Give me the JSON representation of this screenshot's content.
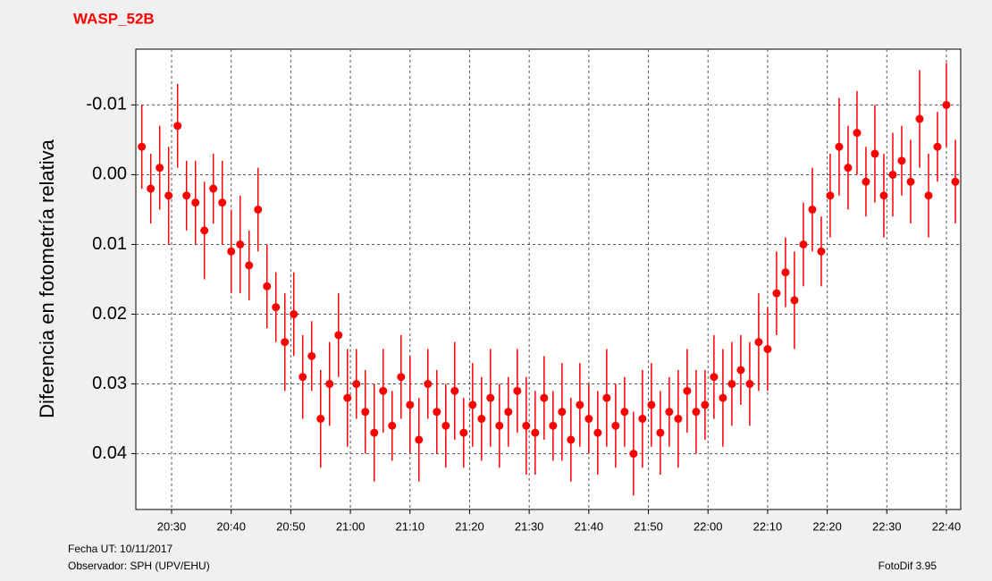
{
  "chart_data": {
    "type": "errorbar",
    "title": "WASP_52B",
    "y_label": "Diferencia en fotometría relativa",
    "footer": {
      "date": "Fecha UT:  10/11/2017",
      "observer": "Observador: SPH (UPV/EHU)",
      "software": "FotoDif 3.95"
    },
    "xlim": [
      1224,
      1362.4
    ],
    "xticks": [
      {
        "value": 1230,
        "label": "20:30"
      },
      {
        "value": 1240,
        "label": "20:40"
      },
      {
        "value": 1250,
        "label": "20:50"
      },
      {
        "value": 1260,
        "label": "21:00"
      },
      {
        "value": 1270,
        "label": "21:10"
      },
      {
        "value": 1280,
        "label": "21:20"
      },
      {
        "value": 1290,
        "label": "21:30"
      },
      {
        "value": 1300,
        "label": "21:40"
      },
      {
        "value": 1310,
        "label": "21:50"
      },
      {
        "value": 1320,
        "label": "22:00"
      },
      {
        "value": 1330,
        "label": "22:10"
      },
      {
        "value": 1340,
        "label": "22:20"
      },
      {
        "value": 1350,
        "label": "22:30"
      },
      {
        "value": 1360,
        "label": "22:40"
      }
    ],
    "ylim": [
      -0.018,
      0.048
    ],
    "y_inverted": true,
    "yticks": [
      -0.01,
      {
        "value": 0,
        "label": "0.00"
      },
      0.01,
      0.02,
      0.03,
      0.04
    ],
    "grid": true,
    "x": [
      1225.0,
      1226.5,
      1228.0,
      1229.5,
      1231.0,
      1232.5,
      1234.0,
      1235.5,
      1237.0,
      1238.5,
      1240.0,
      1241.5,
      1243.0,
      1244.5,
      1246.0,
      1247.5,
      1249.0,
      1250.5,
      1252.0,
      1253.5,
      1255.0,
      1256.5,
      1258.0,
      1259.5,
      1261.0,
      1262.5,
      1264.0,
      1265.5,
      1267.0,
      1268.5,
      1270.0,
      1271.5,
      1273.0,
      1274.5,
      1276.0,
      1277.5,
      1279.0,
      1280.5,
      1282.0,
      1283.5,
      1285.0,
      1286.5,
      1288.0,
      1289.5,
      1291.0,
      1292.5,
      1294.0,
      1295.5,
      1297.0,
      1298.5,
      1300.0,
      1301.5,
      1303.0,
      1304.5,
      1306.0,
      1307.5,
      1309.0,
      1310.5,
      1312.0,
      1313.5,
      1315.0,
      1316.5,
      1318.0,
      1319.5,
      1321.0,
      1322.5,
      1324.0,
      1325.5,
      1327.0,
      1328.5,
      1330.0,
      1331.5,
      1333.0,
      1334.5,
      1336.0,
      1337.5,
      1339.0,
      1340.5,
      1342.0,
      1343.5,
      1345.0,
      1346.5,
      1348.0,
      1349.5,
      1351.0,
      1352.5,
      1354.0,
      1355.5,
      1357.0,
      1358.5,
      1360.0,
      1361.5
    ],
    "series": [
      {
        "color": "#ff0000",
        "values": [
          -0.004,
          0.002,
          -0.001,
          0.003,
          -0.007,
          0.003,
          0.004,
          0.008,
          0.002,
          0.004,
          0.011,
          0.01,
          0.013,
          0.005,
          0.016,
          0.019,
          0.024,
          0.02,
          0.029,
          0.026,
          0.035,
          0.03,
          0.023,
          0.032,
          0.03,
          0.034,
          0.037,
          0.031,
          0.036,
          0.029,
          0.033,
          0.038,
          0.03,
          0.034,
          0.036,
          0.031,
          0.037,
          0.033,
          0.035,
          0.032,
          0.036,
          0.034,
          0.031,
          0.036,
          0.037,
          0.032,
          0.036,
          0.034,
          0.038,
          0.033,
          0.035,
          0.037,
          0.032,
          0.036,
          0.034,
          0.04,
          0.035,
          0.033,
          0.037,
          0.034,
          0.035,
          0.031,
          0.034,
          0.033,
          0.029,
          0.032,
          0.03,
          0.028,
          0.03,
          0.024,
          0.025,
          0.017,
          0.014,
          0.018,
          0.01,
          0.005,
          0.011,
          0.003,
          -0.004,
          -0.001,
          -0.006,
          0.001,
          -0.003,
          0.003,
          0.0,
          -0.002,
          0.001,
          -0.008,
          0.003,
          -0.004,
          -0.01,
          0.001
        ],
        "errors": [
          0.006,
          0.005,
          0.006,
          0.007,
          0.006,
          0.005,
          0.006,
          0.007,
          0.005,
          0.006,
          0.006,
          0.007,
          0.005,
          0.006,
          0.006,
          0.005,
          0.007,
          0.006,
          0.006,
          0.005,
          0.007,
          0.006,
          0.006,
          0.007,
          0.005,
          0.006,
          0.007,
          0.006,
          0.005,
          0.006,
          0.007,
          0.006,
          0.005,
          0.006,
          0.006,
          0.007,
          0.005,
          0.006,
          0.006,
          0.007,
          0.006,
          0.005,
          0.006,
          0.007,
          0.006,
          0.006,
          0.005,
          0.007,
          0.006,
          0.006,
          0.005,
          0.006,
          0.007,
          0.006,
          0.005,
          0.006,
          0.007,
          0.006,
          0.006,
          0.005,
          0.007,
          0.006,
          0.006,
          0.005,
          0.006,
          0.007,
          0.006,
          0.005,
          0.006,
          0.007,
          0.006,
          0.006,
          0.005,
          0.007,
          0.006,
          0.006,
          0.005,
          0.006,
          0.007,
          0.006,
          0.006,
          0.005,
          0.007,
          0.006,
          0.006,
          0.005,
          0.006,
          0.007,
          0.006,
          0.005,
          0.006,
          0.006
        ]
      }
    ]
  }
}
